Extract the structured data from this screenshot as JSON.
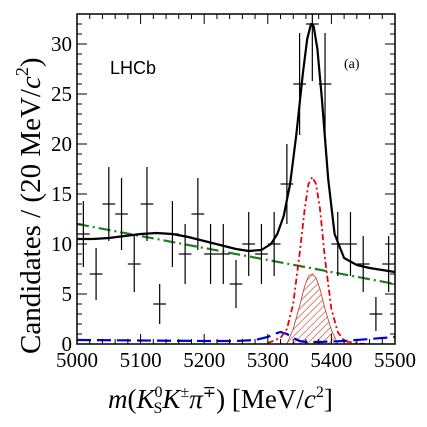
{
  "chart_data": {
    "type": "line",
    "experiment_label": "LHCb",
    "panel_label": "(a)",
    "xlabel": "m(K_S^0 K^± π^∓) [MeV/c^2]",
    "ylabel": "Candidates / (20 MeV/c^2)",
    "xlim": [
      5000,
      5500
    ],
    "ylim": [
      0,
      33
    ],
    "xticks": [
      5000,
      5100,
      5200,
      5300,
      5400,
      5500
    ],
    "yticks": [
      0,
      5,
      10,
      15,
      20,
      25,
      30
    ],
    "data_points": {
      "x": [
        5010,
        5030,
        5050,
        5070,
        5090,
        5110,
        5130,
        5150,
        5170,
        5190,
        5210,
        5230,
        5250,
        5270,
        5290,
        5310,
        5330,
        5350,
        5370,
        5390,
        5410,
        5430,
        5450,
        5470,
        5490
      ],
      "y": [
        11,
        7,
        14,
        13,
        8,
        14,
        4,
        11,
        9,
        13,
        9,
        9,
        6,
        10,
        9,
        10,
        16,
        26,
        32,
        26,
        10,
        10,
        8,
        3,
        8
      ],
      "yerr": [
        3.3,
        2.6,
        3.7,
        3.6,
        2.8,
        3.7,
        2.0,
        3.3,
        3.0,
        3.6,
        3.0,
        3.0,
        2.4,
        3.2,
        3.0,
        3.2,
        4.0,
        5.1,
        5.7,
        5.1,
        3.2,
        3.2,
        2.8,
        1.7,
        2.8
      ]
    },
    "curves": {
      "total_fit": {
        "x": [
          5000,
          5025,
          5050,
          5075,
          5100,
          5125,
          5150,
          5175,
          5200,
          5225,
          5250,
          5270,
          5290,
          5305,
          5315,
          5325,
          5335,
          5345,
          5355,
          5362,
          5368,
          5372,
          5378,
          5385,
          5395,
          5405,
          5420,
          5440,
          5460,
          5480,
          5500
        ],
        "y": [
          10.5,
          10.5,
          10.6,
          10.8,
          11.0,
          11.1,
          11.0,
          10.7,
          10.3,
          9.9,
          9.5,
          9.3,
          9.4,
          10.0,
          11.0,
          12.8,
          16.0,
          21.0,
          27.0,
          30.5,
          32.0,
          31.8,
          29.5,
          24.5,
          16.5,
          11.0,
          8.6,
          7.9,
          7.6,
          7.4,
          7.2
        ]
      },
      "signal": {
        "x": [
          5300,
          5320,
          5330,
          5340,
          5350,
          5358,
          5364,
          5370,
          5376,
          5382,
          5390,
          5400,
          5410,
          5420,
          5440,
          5460
        ],
        "y": [
          0.1,
          0.6,
          1.5,
          4.0,
          9.0,
          13.5,
          16.0,
          16.7,
          16.0,
          13.5,
          8.5,
          3.5,
          1.2,
          0.3,
          0.05,
          0.0
        ]
      },
      "combinatorial_background": {
        "x": [
          5000,
          5500
        ],
        "y": [
          12.0,
          6.0
        ]
      },
      "partially_reconstructed_background": {
        "x": [
          5000,
          5100,
          5200,
          5250,
          5280,
          5300,
          5310,
          5320,
          5330,
          5340,
          5350,
          5360,
          5380,
          5420,
          5460,
          5500
        ],
        "y": [
          0.4,
          0.35,
          0.3,
          0.3,
          0.4,
          0.7,
          1.0,
          1.2,
          1.0,
          0.6,
          0.3,
          0.2,
          0.2,
          0.3,
          0.5,
          0.7
        ]
      },
      "hatched_component": {
        "x": [
          5330,
          5340,
          5350,
          5358,
          5364,
          5370,
          5376,
          5382,
          5390,
          5400,
          5410
        ],
        "y": [
          0.0,
          1.5,
          3.8,
          5.8,
          6.8,
          7.0,
          6.6,
          5.5,
          3.5,
          1.4,
          0.0
        ]
      }
    },
    "legend": "none",
    "grid": false
  },
  "colors": {
    "total_fit": "#000000",
    "signal": "#e8000b",
    "combinatorial_background": "#1e7d1e",
    "partially_reconstructed_background": "#0000dd",
    "hatched_component": "#c0392b"
  }
}
